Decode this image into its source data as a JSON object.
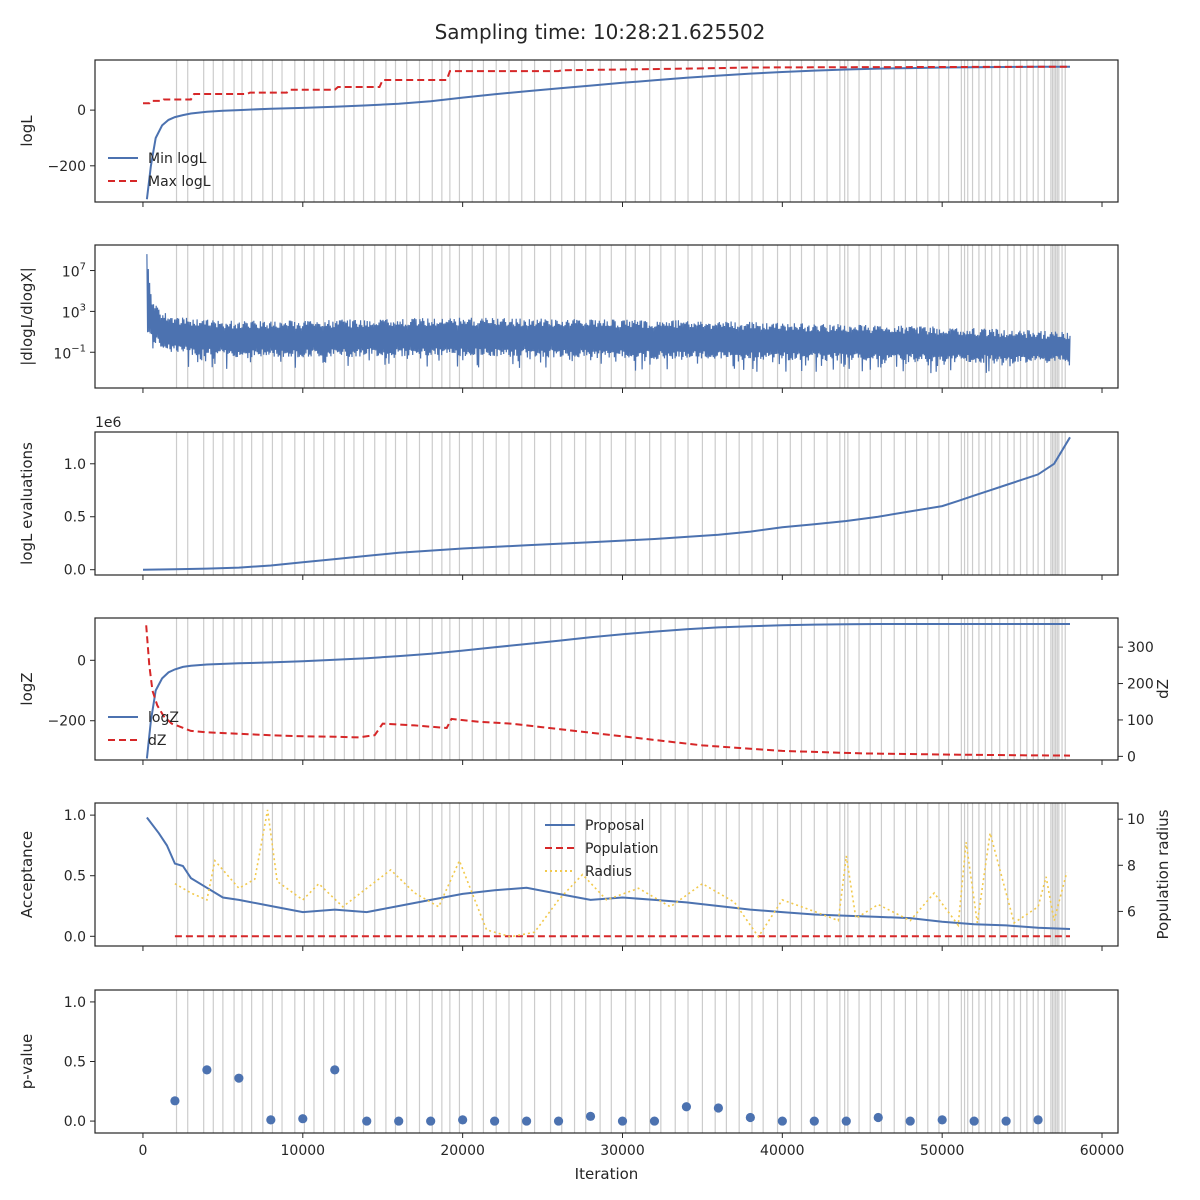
{
  "figure": {
    "title": "Sampling time: 10:28:21.625502"
  },
  "colors": {
    "blue": "#4c72b0",
    "red": "#d62728",
    "yellow": "#f2c94c",
    "grid": "#cccccc",
    "text": "#262626"
  },
  "chart_data": [
    {
      "type": "line",
      "name": "logl-panel",
      "ylabel": "logL",
      "ylim": [
        -330,
        180
      ],
      "xlim": [
        -3000,
        61000
      ],
      "yticks": [
        {
          "v": 0,
          "label": "0"
        },
        {
          "v": -200,
          "label": "−200"
        }
      ],
      "legend": {
        "placement": "lower-left",
        "entries": [
          "Min logL",
          "Max logL"
        ]
      },
      "series": [
        {
          "name": "Min logL",
          "style": "solid",
          "color": "#4c72b0",
          "x": [
            250,
            500,
            800,
            1200,
            1600,
            2000,
            2500,
            3000,
            4000,
            5000,
            6000,
            8000,
            10000,
            12000,
            14000,
            16000,
            18000,
            20000,
            22000,
            24000,
            26000,
            28000,
            30000,
            32000,
            34000,
            36000,
            38000,
            40000,
            42000,
            44000,
            46000,
            48000,
            50000,
            52000,
            54000,
            56000,
            58000
          ],
          "y": [
            -320,
            -200,
            -100,
            -55,
            -35,
            -25,
            -18,
            -12,
            -6,
            -2,
            0,
            5,
            8,
            12,
            17,
            23,
            32,
            45,
            57,
            68,
            78,
            88,
            98,
            107,
            116,
            124,
            131,
            137,
            142,
            146,
            149,
            151,
            153,
            154,
            155,
            155.5,
            156
          ]
        },
        {
          "name": "Max logL",
          "style": "dashed",
          "color": "#d62728",
          "x": [
            0,
            400,
            500,
            1200,
            1300,
            3000,
            3200,
            6500,
            6700,
            9000,
            9200,
            12000,
            12200,
            14800,
            15000,
            19000,
            19200,
            26000,
            26200,
            35000,
            38000,
            44000,
            50000,
            58000
          ],
          "y": [
            25,
            25,
            33,
            33,
            38,
            38,
            58,
            58,
            63,
            63,
            73,
            73,
            83,
            83,
            108,
            108,
            140,
            140,
            143,
            150,
            153,
            154,
            155,
            156
          ]
        }
      ]
    },
    {
      "type": "line",
      "name": "gradient-panel",
      "ylabel": "|dlogL/dlogX|",
      "scale": "log",
      "ylim_log10": [
        -4.5,
        9.5
      ],
      "xlim": [
        -3000,
        61000
      ],
      "yticks": [
        {
          "exp": 7,
          "label": "10",
          "sup": "7"
        },
        {
          "exp": 3,
          "label": "10",
          "sup": "3"
        },
        {
          "exp": -1,
          "label": "10",
          "sup": "−1"
        }
      ],
      "series": [
        {
          "name": "gradient",
          "style": "solid",
          "color": "#4c72b0",
          "x": [
            250,
            400,
            600,
            1000,
            1500,
            2500,
            4000,
            6000,
            10000,
            15000,
            20000,
            25000,
            30000,
            35000,
            40000,
            45000,
            50000,
            55000,
            58000
          ],
          "upper_log10": [
            9,
            6,
            4,
            3.3,
            2.8,
            2.4,
            2.2,
            2.1,
            2.1,
            2.3,
            2.4,
            2.3,
            2.2,
            2.1,
            1.9,
            1.7,
            1.5,
            1.2,
            1
          ],
          "lower_log10": [
            1,
            0.5,
            0,
            -0.5,
            -0.8,
            -1.2,
            -1.4,
            -1.5,
            -1.5,
            -1.4,
            -1.4,
            -1.5,
            -1.6,
            -1.7,
            -1.8,
            -1.9,
            -2,
            -2.1,
            -2.1
          ]
        }
      ]
    },
    {
      "type": "line",
      "name": "evaluations-panel",
      "ylabel": "logL evaluations",
      "offset_label": "1e6",
      "ylim": [
        -0.05,
        1.3
      ],
      "xlim": [
        -3000,
        61000
      ],
      "yticks": [
        {
          "v": 0,
          "label": "0.0"
        },
        {
          "v": 0.5,
          "label": "0.5"
        },
        {
          "v": 1,
          "label": "1.0"
        }
      ],
      "series": [
        {
          "name": "logL evaluations",
          "style": "solid",
          "color": "#4c72b0",
          "x": [
            0,
            2000,
            4000,
            6000,
            8000,
            10000,
            12000,
            14000,
            16000,
            18000,
            20000,
            22000,
            24000,
            26000,
            28000,
            30000,
            32000,
            34000,
            36000,
            38000,
            40000,
            42000,
            44000,
            46000,
            48000,
            50000,
            51000,
            52000,
            53000,
            54000,
            55000,
            56000,
            57000,
            58000
          ],
          "y": [
            0,
            0.005,
            0.01,
            0.02,
            0.04,
            0.07,
            0.1,
            0.13,
            0.16,
            0.18,
            0.2,
            0.215,
            0.23,
            0.245,
            0.26,
            0.275,
            0.29,
            0.31,
            0.33,
            0.36,
            0.4,
            0.43,
            0.46,
            0.5,
            0.55,
            0.6,
            0.65,
            0.7,
            0.75,
            0.8,
            0.85,
            0.9,
            1.0,
            1.25
          ]
        }
      ]
    },
    {
      "type": "line",
      "name": "logz-panel",
      "ylabel": "logZ",
      "ylabel_right": "dZ",
      "ylim": [
        -330,
        140
      ],
      "ylim_right": [
        -10,
        380
      ],
      "xlim": [
        -3000,
        61000
      ],
      "yticks": [
        {
          "v": 0,
          "label": "0"
        },
        {
          "v": -200,
          "label": "−200"
        }
      ],
      "yticks_right": [
        {
          "v": 0,
          "label": "0"
        },
        {
          "v": 100,
          "label": "100"
        },
        {
          "v": 200,
          "label": "200"
        },
        {
          "v": 300,
          "label": "300"
        }
      ],
      "legend": {
        "placement": "lower-left",
        "entries": [
          "logZ",
          "dZ"
        ]
      },
      "series": [
        {
          "name": "logZ",
          "axis": "left",
          "style": "solid",
          "color": "#4c72b0",
          "x": [
            250,
            500,
            800,
            1200,
            1600,
            2000,
            2500,
            3000,
            4000,
            6000,
            8000,
            10000,
            12000,
            14000,
            16000,
            18000,
            20000,
            22000,
            24000,
            26000,
            28000,
            30000,
            32000,
            34000,
            36000,
            38000,
            40000,
            42000,
            44000,
            46000,
            50000,
            54000,
            58000
          ],
          "y": [
            -325,
            -200,
            -100,
            -60,
            -40,
            -30,
            -22,
            -18,
            -14,
            -10,
            -7,
            -3,
            2,
            7,
            14,
            22,
            32,
            43,
            54,
            65,
            76,
            86,
            95,
            103,
            109,
            113,
            116,
            118,
            119,
            120,
            120,
            120,
            120
          ]
        },
        {
          "name": "dZ",
          "axis": "right",
          "style": "dashed",
          "color": "#d62728",
          "x": [
            200,
            400,
            600,
            900,
            1300,
            1800,
            2400,
            3000,
            4000,
            6000,
            8000,
            10000,
            12000,
            13500,
            14500,
            15000,
            17000,
            19000,
            19300,
            21000,
            23000,
            25000,
            27000,
            30000,
            35000,
            40000,
            45000,
            50000,
            55000,
            58000
          ],
          "y": [
            360,
            250,
            180,
            140,
            110,
            90,
            80,
            70,
            66,
            62,
            58,
            55,
            54,
            52,
            58,
            90,
            85,
            78,
            103,
            95,
            90,
            80,
            70,
            55,
            30,
            15,
            8,
            5,
            3,
            2
          ]
        }
      ]
    },
    {
      "type": "line",
      "name": "acceptance-panel",
      "ylabel": "Acceptance",
      "ylabel_right": "Population radius",
      "ylim": [
        -0.08,
        1.1
      ],
      "ylim_right": [
        4.5,
        10.7
      ],
      "xlim": [
        -3000,
        61000
      ],
      "yticks": [
        {
          "v": 0,
          "label": "0.0"
        },
        {
          "v": 0.5,
          "label": "0.5"
        },
        {
          "v": 1,
          "label": "1.0"
        }
      ],
      "yticks_right": [
        {
          "v": 6,
          "label": "6"
        },
        {
          "v": 8,
          "label": "8"
        },
        {
          "v": 10,
          "label": "10"
        }
      ],
      "legend": {
        "placement": "top-center",
        "entries": [
          "Proposal",
          "Population",
          "Radius"
        ]
      },
      "series": [
        {
          "name": "Proposal",
          "axis": "left",
          "style": "solid",
          "color": "#4c72b0",
          "x": [
            250,
            1000,
            1500,
            2000,
            2500,
            3000,
            4000,
            5000,
            6000,
            8000,
            10000,
            12000,
            14000,
            16000,
            18000,
            20000,
            22000,
            24000,
            26000,
            28000,
            30000,
            32000,
            34000,
            36000,
            38000,
            40000,
            42000,
            44000,
            46000,
            48000,
            50000,
            52000,
            54000,
            56000,
            58000
          ],
          "y": [
            0.98,
            0.85,
            0.75,
            0.6,
            0.58,
            0.48,
            0.4,
            0.32,
            0.3,
            0.25,
            0.2,
            0.22,
            0.2,
            0.25,
            0.3,
            0.35,
            0.38,
            0.4,
            0.35,
            0.3,
            0.32,
            0.3,
            0.28,
            0.25,
            0.22,
            0.2,
            0.18,
            0.17,
            0.16,
            0.15,
            0.12,
            0.1,
            0.09,
            0.07,
            0.06
          ]
        },
        {
          "name": "Population",
          "axis": "left",
          "style": "dashed",
          "color": "#d62728",
          "x": [
            2000,
            58000
          ],
          "y": [
            0.0,
            0.0
          ]
        },
        {
          "name": "Radius",
          "axis": "right",
          "style": "dotted",
          "color": "#f2c94c",
          "x": [
            2000,
            3000,
            4000,
            4500,
            6000,
            7000,
            7800,
            8400,
            10000,
            11000,
            12500,
            14000,
            15500,
            17000,
            18500,
            19800,
            21500,
            23000,
            24500,
            26000,
            27500,
            29000,
            31000,
            33000,
            35000,
            37000,
            38500,
            40000,
            42000,
            43500,
            44000,
            44600,
            46000,
            48000,
            49500,
            51000,
            51500,
            52200,
            53000,
            54500,
            56000,
            56500,
            57000,
            57800
          ],
          "y": [
            7.2,
            6.8,
            6.5,
            8.2,
            7,
            7.4,
            10.4,
            7.3,
            6.5,
            7.2,
            6.2,
            7,
            7.8,
            6.8,
            6.2,
            8.2,
            5.2,
            4.9,
            5.1,
            6.5,
            7.6,
            6.5,
            7,
            6.2,
            7.2,
            6.4,
            4.9,
            6.5,
            6,
            5.6,
            8.4,
            5.7,
            6.3,
            5.6,
            6.8,
            5.4,
            9,
            5.5,
            9.4,
            5.5,
            6.2,
            7.5,
            5.6,
            7.7
          ]
        }
      ]
    },
    {
      "type": "scatter",
      "name": "pvalue-panel",
      "ylabel": "p-value",
      "xlabel": "Iteration",
      "ylim": [
        -0.1,
        1.1
      ],
      "xlim": [
        -3000,
        61000
      ],
      "yticks": [
        {
          "v": 0,
          "label": "0.0"
        },
        {
          "v": 0.5,
          "label": "0.5"
        },
        {
          "v": 1,
          "label": "1.0"
        }
      ],
      "xticks": [
        0,
        10000,
        20000,
        30000,
        40000,
        50000,
        60000
      ],
      "series": [
        {
          "name": "p-value",
          "color": "#4c72b0",
          "x": [
            2000,
            4000,
            6000,
            8000,
            10000,
            12000,
            14000,
            16000,
            18000,
            20000,
            22000,
            24000,
            26000,
            28000,
            30000,
            32000,
            34000,
            36000,
            38000,
            40000,
            42000,
            44000,
            46000,
            48000,
            50000,
            52000,
            54000,
            56000
          ],
          "y": [
            0.17,
            0.43,
            0.36,
            0.01,
            0.02,
            0.43,
            0.0,
            0.0,
            0.0,
            0.01,
            0.0,
            0.0,
            0.0,
            0.04,
            0.0,
            0.0,
            0.12,
            0.11,
            0.03,
            0.0,
            0.0,
            0.0,
            0.03,
            0.0,
            0.01,
            0.0,
            0.0,
            0.01
          ]
        }
      ]
    }
  ],
  "update_iterations": [
    2100,
    2800,
    3800,
    4400,
    5000,
    5700,
    6200,
    6800,
    7500,
    8100,
    8700,
    9500,
    10100,
    10700,
    11300,
    12000,
    12600,
    13200,
    13800,
    14500,
    15200,
    15800,
    16500,
    17300,
    18100,
    18700,
    19200,
    19800,
    20600,
    21300,
    22100,
    22900,
    23700,
    24500,
    25500,
    26200,
    27000,
    27700,
    28600,
    29300,
    30200,
    30800,
    31700,
    32400,
    33300,
    34100,
    35000,
    35800,
    36500,
    37300,
    38100,
    38800,
    39700,
    40500,
    41200,
    42000,
    42800,
    43600,
    43900,
    44100,
    44800,
    45500,
    46200,
    47000,
    47700,
    48400,
    49100,
    49800,
    50400,
    51200,
    51400,
    51600,
    51900,
    52300,
    52700,
    53100,
    53600,
    54100,
    54500,
    54900,
    55300,
    55700,
    56000,
    56400,
    56800,
    56900,
    57000,
    57100,
    57200,
    57300,
    57500,
    57700
  ]
}
